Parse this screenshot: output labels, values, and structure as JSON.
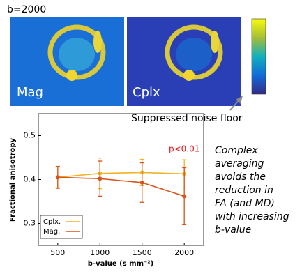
{
  "image_panel": {
    "title": "b=2000",
    "labels": [
      "Mag",
      "Cplx"
    ],
    "annotation": "Suppressed noise floor"
  },
  "caption": {
    "lines": [
      "Complex",
      "averaging",
      "avoids the",
      "reduction in",
      "FA (and MD)",
      "with increasing",
      "b-value"
    ]
  },
  "chart_data": {
    "type": "line",
    "x_label": "b-value (s mm⁻²)",
    "y_label": "Fractional anisotropy",
    "annotation": "p<0.01",
    "x": [
      500,
      1000,
      1500,
      2000
    ],
    "series": [
      {
        "name": "Cplx.",
        "color": "#f0b323",
        "values": [
          0.405,
          0.414,
          0.416,
          0.413
        ],
        "errors": [
          0.024,
          0.035,
          0.03,
          0.032
        ]
      },
      {
        "name": "Mag.",
        "color": "#d95319",
        "values": [
          0.405,
          0.402,
          0.393,
          0.362
        ],
        "errors": [
          0.025,
          0.04,
          0.045,
          0.065
        ]
      }
    ],
    "xlim": [
      270,
      2230
    ],
    "ylim": [
      0.25,
      0.55
    ],
    "xticks": [
      500,
      1000,
      1500,
      2000
    ],
    "yticks": [
      0.3,
      0.4,
      0.5
    ],
    "legend": "lower left"
  }
}
